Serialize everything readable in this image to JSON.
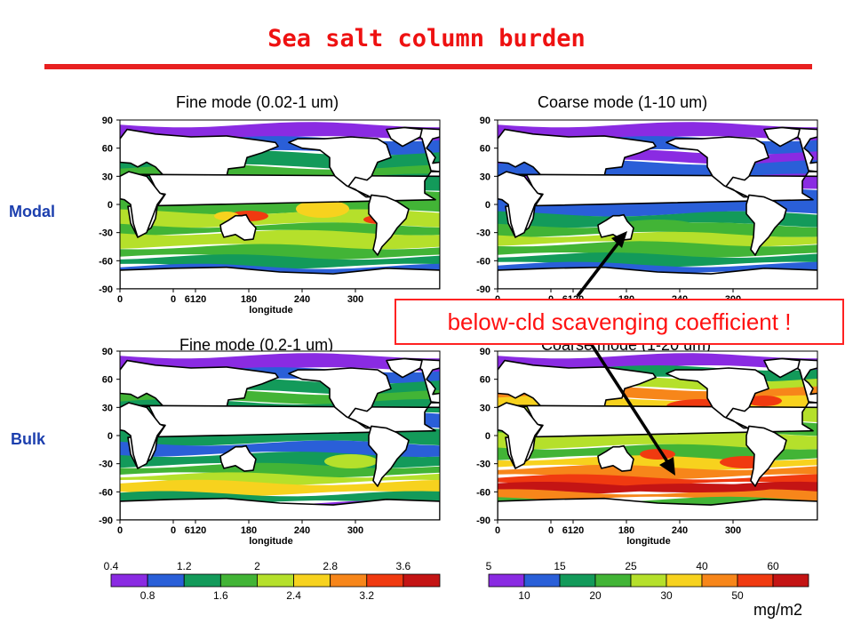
{
  "title": "Sea salt column burden",
  "rows": {
    "modal": "Modal",
    "bulk": "Bulk"
  },
  "panels": [
    {
      "title": "Fine mode (0.02-1 um)",
      "y_ticks": [
        "90",
        "60",
        "30",
        "0",
        "-30",
        "-60",
        "-90"
      ],
      "x_ticks": [
        "0",
        "0",
        "6120",
        "180",
        "240",
        "300"
      ],
      "x_label": "longitude"
    },
    {
      "title": "Coarse mode (1-10 um)",
      "y_ticks": [
        "90",
        "60",
        "30",
        "0",
        "-30",
        "-60",
        "-90"
      ],
      "x_ticks": [
        "0",
        "0",
        "6120",
        "180",
        "240",
        "300"
      ],
      "x_label": "longitude"
    },
    {
      "title": "Fine mode (0.2-1 um)",
      "y_ticks": [
        "90",
        "60",
        "30",
        "0",
        "-30",
        "-60",
        "-90"
      ],
      "x_ticks": [
        "0",
        "0",
        "6120",
        "180",
        "240",
        "300"
      ],
      "x_label": "longitude"
    },
    {
      "title": "Coarse mode (1-20 um)",
      "y_ticks": [
        "90",
        "60",
        "30",
        "0",
        "-30",
        "-60",
        "-90"
      ],
      "x_ticks": [
        "0",
        "0",
        "6120",
        "180",
        "240",
        "300"
      ],
      "x_label": "longitude"
    }
  ],
  "callout": "below-cld scavenging coefficient !",
  "colorbars": {
    "fine": {
      "top_labels": [
        "0.4",
        "1.2",
        "2",
        "2.8",
        "3.6"
      ],
      "bottom_labels": [
        "0.8",
        "1.6",
        "2.4",
        "3.2"
      ]
    },
    "coarse": {
      "top_labels": [
        "5",
        "15",
        "25",
        "40",
        "60"
      ],
      "bottom_labels": [
        "10",
        "20",
        "30",
        "50"
      ],
      "units": "mg/m2"
    }
  },
  "colors": {
    "levels": [
      "#8a2be2",
      "#2a5fd8",
      "#139a5a",
      "#42b436",
      "#b5e02b",
      "#f7d21e",
      "#f7861a",
      "#f03a10",
      "#c41414"
    ],
    "title": "#ee1111",
    "row_label": "#1c3fae"
  }
}
